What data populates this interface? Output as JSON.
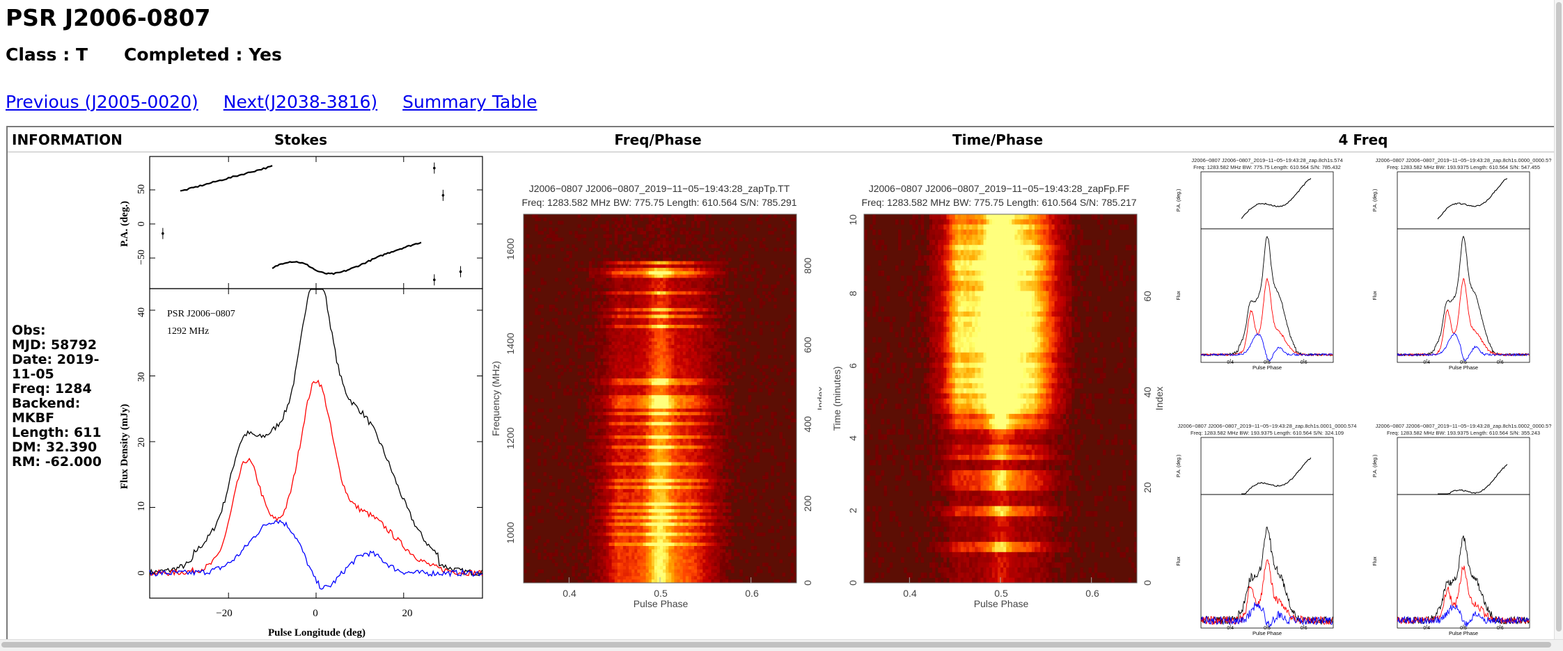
{
  "page": {
    "title": "PSR J2006-0807",
    "class_label": "Class : T",
    "completed_label": "Completed : Yes"
  },
  "nav": {
    "previous": "Previous (J2005-0020)",
    "next": "Next(J2038-3816)",
    "summary": "Summary Table"
  },
  "columns": {
    "information": "INFORMATION",
    "stokes": "Stokes",
    "freqphase": "Freq/Phase",
    "timephase": "Time/Phase",
    "fourfreq": "4 Freq"
  },
  "info": {
    "obs": "Obs:",
    "mjd": "MJD: 58792",
    "date": "Date: 2019-11-05",
    "freq": "Freq: 1284",
    "backend": "Backend: MKBF",
    "length": "Length: 611",
    "dm": "DM: 32.390",
    "rm": "RM: -62.000"
  },
  "stokes_plot": {
    "name_label": "PSR J2006−0807",
    "freq_label": "1292 MHz",
    "pa_ylabel": "P.A. (deg.)",
    "flux_ylabel": "Flux Density (mJy)",
    "xlabel": "Pulse Longitude (deg)",
    "pa_ticks": [
      "50",
      "0",
      "−50"
    ],
    "flux_ticks": [
      "0",
      "10",
      "20",
      "30",
      "40"
    ],
    "x_ticks": [
      "−20",
      "0",
      "20"
    ],
    "series_colors": {
      "I": "#000000",
      "L": "#ff0000",
      "V": "#0000ff"
    }
  },
  "freqphase_plot": {
    "title1": "J2006−0807  J2006−0807_2019−11−05−19:43:28_zapTp.TT",
    "title2": "Freq: 1283.582 MHz BW: 775.75 Length: 610.564 S/N: 785.291",
    "ylabel": "Frequency (MHz)",
    "ylabel_right": "Index",
    "xlabel": "Pulse Phase",
    "y_ticks": [
      "1600",
      "1400",
      "1200",
      "1000"
    ],
    "right_ticks": [
      "800",
      "600",
      "400",
      "200",
      "0"
    ],
    "x_ticks": [
      "0.4",
      "0.5",
      "0.6"
    ]
  },
  "timephase_plot": {
    "title1": "J2006−0807  J2006−0807_2019−11−05−19:43:28_zapFp.FF",
    "title2": "Freq: 1283.582 MHz BW: 775.75 Length: 610.564 S/N: 785.217",
    "ylabel": "Time (minutes)",
    "ylabel_right": "Index",
    "xlabel": "Pulse Phase",
    "y_ticks": [
      "10",
      "8",
      "6",
      "4",
      "2",
      "0"
    ],
    "right_ticks": [
      "60",
      "40",
      "20",
      "0"
    ],
    "x_ticks": [
      "0.4",
      "0.5",
      "0.6"
    ]
  },
  "fourfreq_plots": [
    {
      "title1": "J2006−0807  J2006−0807_2019−11−05−19:43:28_zap.8ch1s.574",
      "title2": "Freq: 1283.582 MHz BW: 775.75 Length: 610.564 S/N: 785.432"
    },
    {
      "title1": "J2006−0807  J2006−0807_2019−11−05−19:43:28_zap.8ch1s.0000_0000.5?",
      "title2": "Freq: 1283.582 MHz BW: 193.9375 Length: 610.564 S/N: 547.455"
    },
    {
      "title1": "J2006−0807  J2006−0807_2019−11−05−19:43:28_zap.8ch1s.0001_0000.574",
      "title2": "Freq: 1283.582 MHz BW: 193.9375 Length: 610.564 S/N: 324.109"
    },
    {
      "title1": "J2006−0807  J2006−0807_2019−11−05−19:43:28_zap.8ch1s.0002_0000.5?",
      "title2": "Freq: 1283.582 MHz BW: 193.9375 Length: 610.564 S/N: 355.243"
    }
  ],
  "fourfreq_labels": {
    "pa": "P.A. (deg.)",
    "flux": "Flux",
    "xlabel": "Pulse Phase",
    "x_ticks": [
      "0.4",
      "0.5",
      "0.6"
    ]
  }
}
